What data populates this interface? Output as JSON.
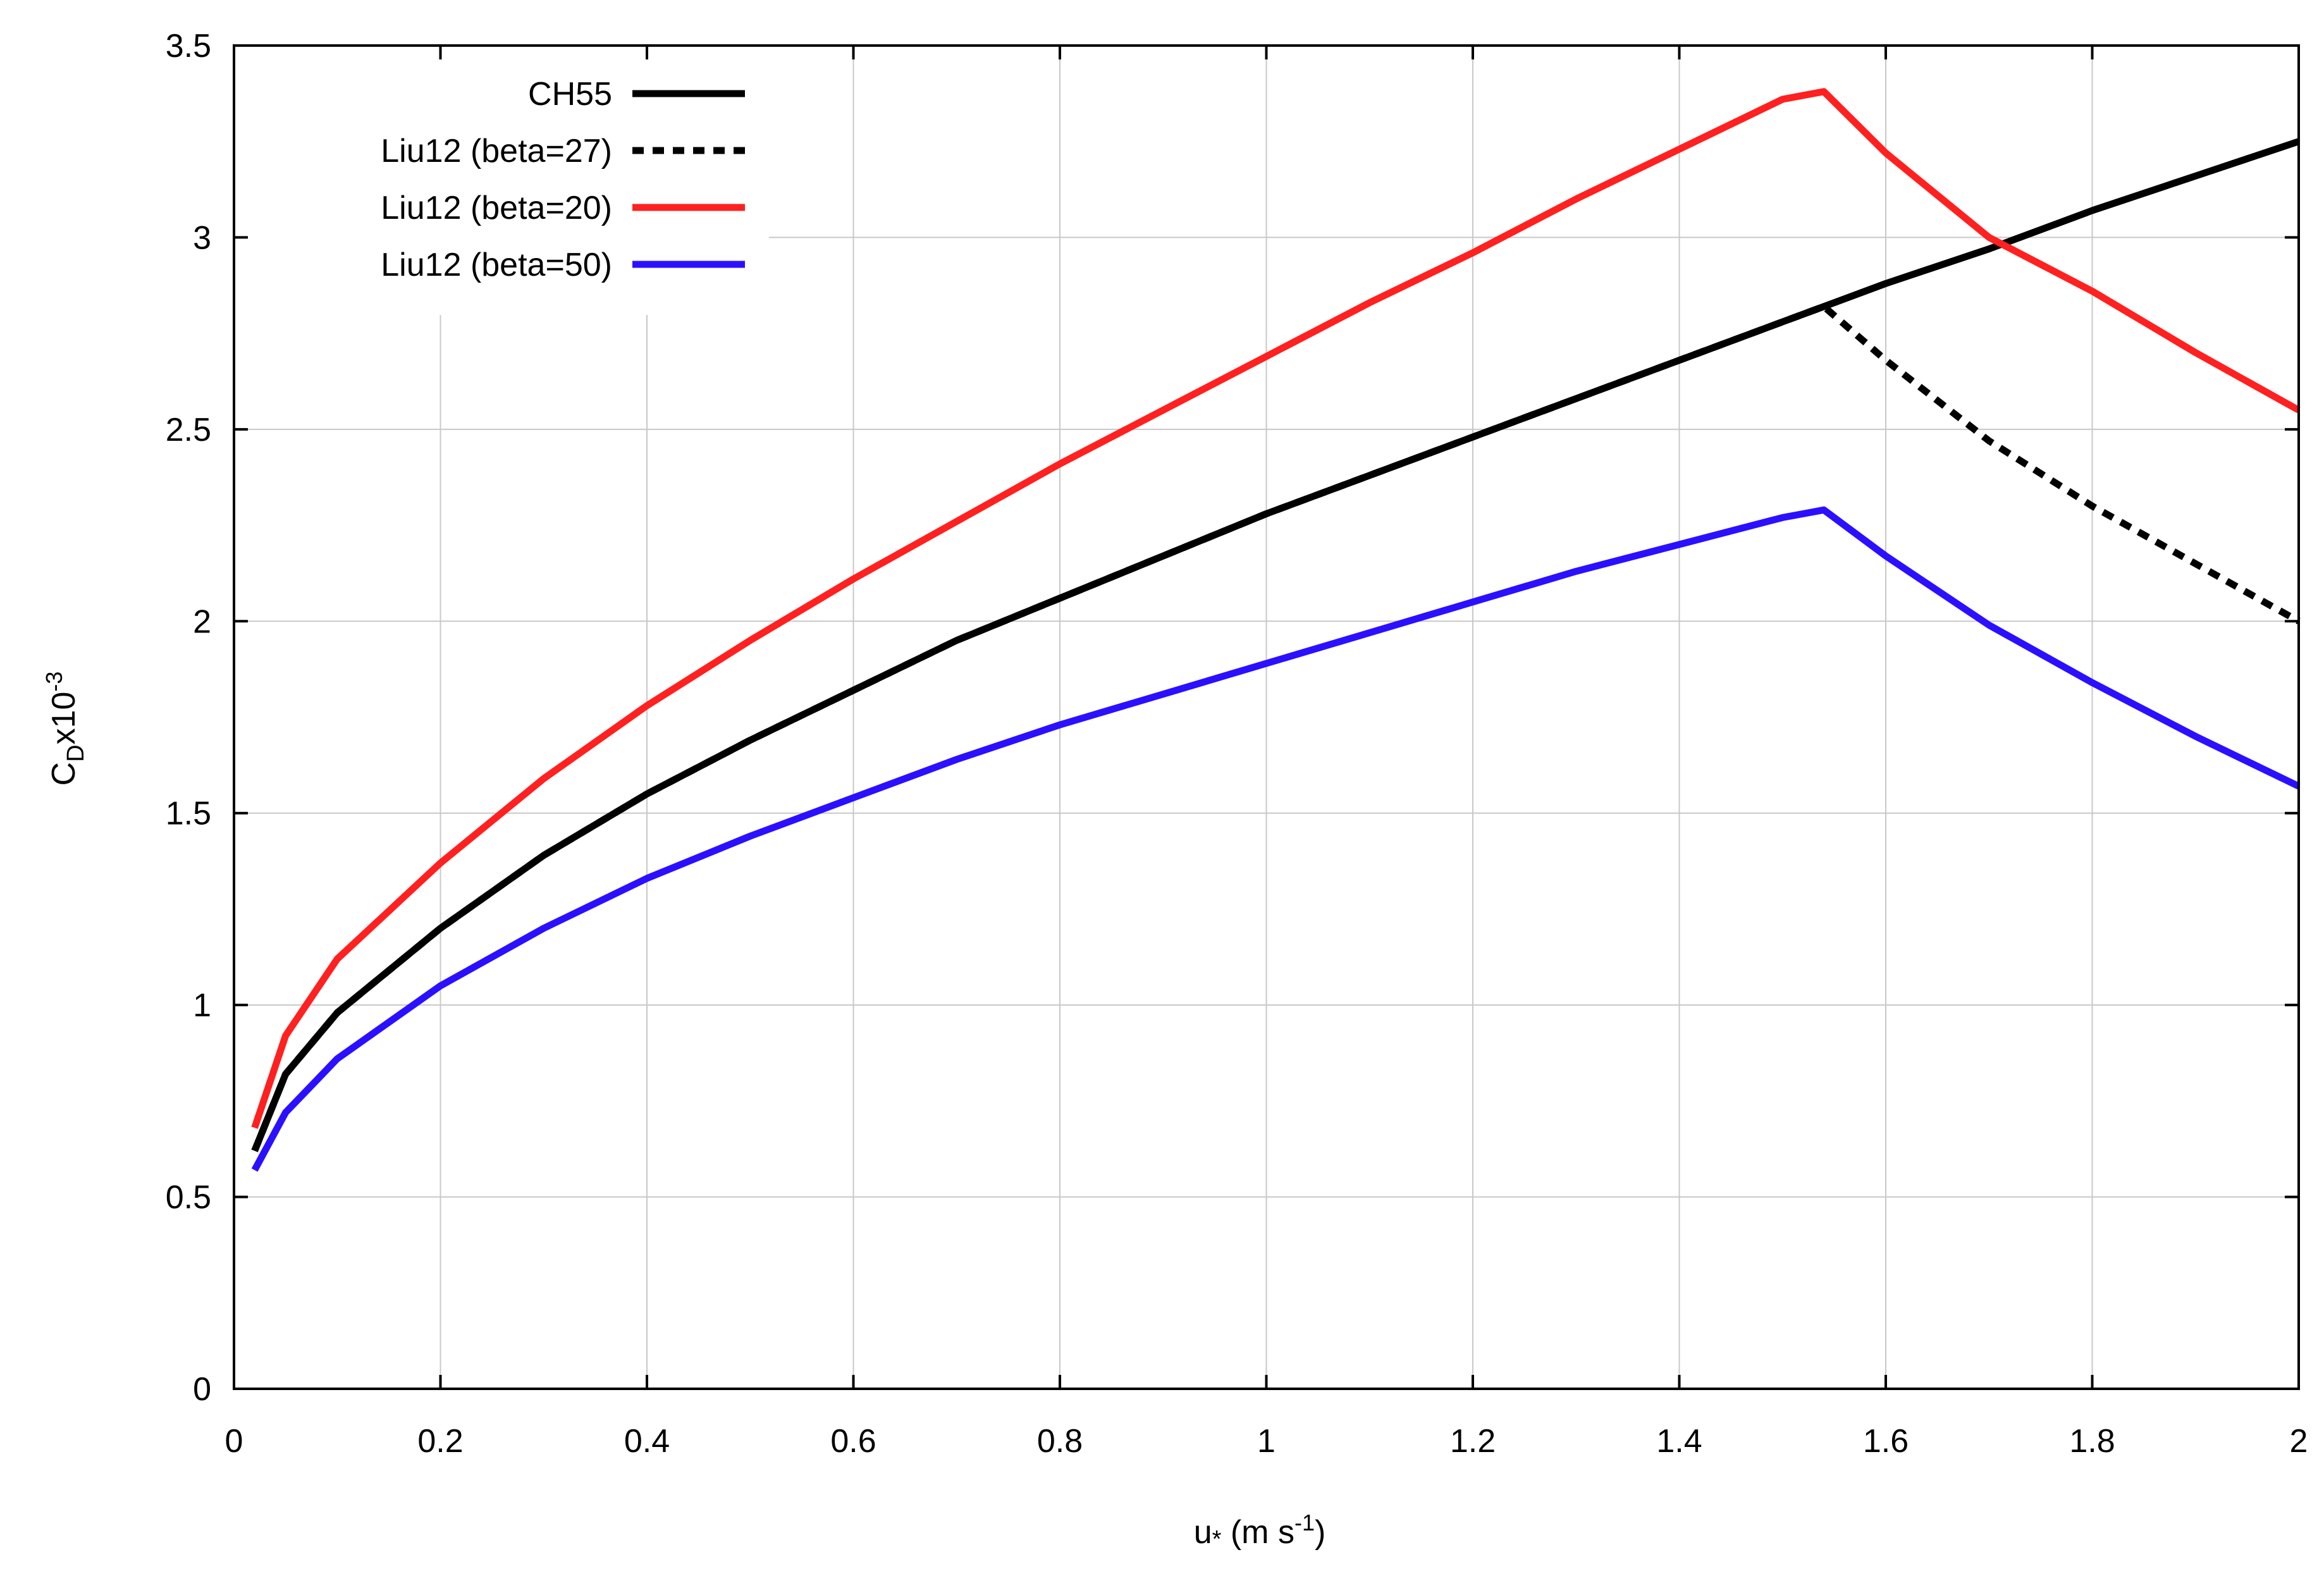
{
  "chart_data": {
    "type": "line",
    "xlabel": "u* (m s-1)",
    "ylabel": "CDx10-3",
    "xlim": [
      0,
      2
    ],
    "ylim": [
      0,
      3.5
    ],
    "grid": true,
    "legend_position": "top-left",
    "x_ticks": [
      "0",
      "0.2",
      "0.4",
      "0.6",
      "0.8",
      "1",
      "1.2",
      "1.4",
      "1.6",
      "1.8",
      "2"
    ],
    "y_ticks": [
      "0",
      "0.5",
      "1",
      "1.5",
      "2",
      "2.5",
      "3",
      "3.5"
    ],
    "series": [
      {
        "name": "CH55",
        "color": "#000000",
        "style": "solid",
        "x": [
          0.02,
          0.05,
          0.1,
          0.2,
          0.3,
          0.4,
          0.5,
          0.6,
          0.7,
          0.8,
          0.9,
          1.0,
          1.1,
          1.2,
          1.3,
          1.4,
          1.5,
          1.52,
          1.6,
          1.7,
          1.8,
          1.9,
          2.0
        ],
        "y": [
          0.62,
          0.82,
          0.98,
          1.2,
          1.39,
          1.55,
          1.69,
          1.82,
          1.95,
          2.06,
          2.17,
          2.28,
          2.38,
          2.48,
          2.58,
          2.68,
          2.78,
          2.8,
          2.88,
          2.97,
          3.07,
          3.16,
          3.25
        ]
      },
      {
        "name": "Liu12 (beta=27)",
        "color": "#000000",
        "style": "dotted",
        "x": [
          0.02,
          0.05,
          0.1,
          0.2,
          0.3,
          0.4,
          0.5,
          0.6,
          0.7,
          0.8,
          0.9,
          1.0,
          1.1,
          1.2,
          1.3,
          1.4,
          1.5,
          1.52,
          1.54,
          1.6,
          1.7,
          1.8,
          1.9,
          2.0
        ],
        "y": [
          0.62,
          0.82,
          0.98,
          1.2,
          1.39,
          1.55,
          1.69,
          1.82,
          1.95,
          2.06,
          2.17,
          2.28,
          2.38,
          2.48,
          2.58,
          2.68,
          2.78,
          2.8,
          2.82,
          2.68,
          2.47,
          2.3,
          2.15,
          2.0
        ]
      },
      {
        "name": "Liu12 (beta=20)",
        "color": "#ff2020",
        "style": "solid",
        "x": [
          0.02,
          0.05,
          0.1,
          0.2,
          0.3,
          0.4,
          0.5,
          0.6,
          0.7,
          0.8,
          0.9,
          1.0,
          1.1,
          1.2,
          1.3,
          1.4,
          1.5,
          1.52,
          1.54,
          1.6,
          1.7,
          1.8,
          1.9,
          2.0
        ],
        "y": [
          0.68,
          0.92,
          1.12,
          1.37,
          1.59,
          1.78,
          1.95,
          2.11,
          2.26,
          2.41,
          2.55,
          2.69,
          2.83,
          2.96,
          3.1,
          3.23,
          3.36,
          3.37,
          3.38,
          3.22,
          3.0,
          2.86,
          2.7,
          2.55
        ]
      },
      {
        "name": "Liu12 (beta=50)",
        "color": "#2b10ff",
        "style": "solid",
        "x": [
          0.02,
          0.05,
          0.1,
          0.2,
          0.3,
          0.4,
          0.5,
          0.6,
          0.7,
          0.8,
          0.9,
          1.0,
          1.1,
          1.2,
          1.3,
          1.4,
          1.5,
          1.52,
          1.54,
          1.6,
          1.7,
          1.8,
          1.9,
          2.0
        ],
        "y": [
          0.57,
          0.72,
          0.86,
          1.05,
          1.2,
          1.33,
          1.44,
          1.54,
          1.64,
          1.73,
          1.81,
          1.89,
          1.97,
          2.05,
          2.13,
          2.2,
          2.27,
          2.28,
          2.29,
          2.17,
          1.99,
          1.84,
          1.7,
          1.57
        ]
      }
    ]
  }
}
